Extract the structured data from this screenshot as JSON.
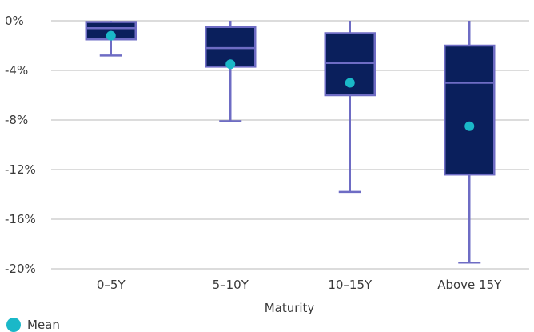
{
  "chart_data": {
    "type": "boxplot",
    "categories": [
      "0–5Y",
      "5–10Y",
      "10–15Y",
      "Above 15Y"
    ],
    "boxes": [
      {
        "category": "0–5Y",
        "min": -2.8,
        "q1": -1.5,
        "median": -0.6,
        "q3": -0.1,
        "max": 0.0,
        "mean": -1.2
      },
      {
        "category": "5–10Y",
        "min": -8.1,
        "q1": -3.7,
        "median": -2.2,
        "q3": -0.5,
        "max": 0.0,
        "mean": -3.5
      },
      {
        "category": "10–15Y",
        "min": -13.8,
        "q1": -6.0,
        "median": -3.4,
        "q3": -1.0,
        "max": 0.0,
        "mean": -5.0
      },
      {
        "category": "Above 15Y",
        "min": -19.5,
        "q1": -12.4,
        "median": -5.0,
        "q3": -2.0,
        "max": 0.0,
        "mean": -8.5
      }
    ],
    "xlabel": "Maturity",
    "ylabel": "",
    "ylim": [
      -20,
      0
    ],
    "yticks": [
      "0%",
      "-4%",
      "-8%",
      "-12%",
      "-16%",
      "-20%"
    ],
    "ytick_values": [
      0,
      -4,
      -8,
      -12,
      -16,
      -20
    ],
    "grid": true,
    "legend": [
      {
        "name": "Mean",
        "color": "#1ab8c8"
      }
    ],
    "legend_position": "bottom-left",
    "colors": {
      "box_fill": "#0a1f5c",
      "box_stroke": "#6e6cc4",
      "whisker": "#6e6cc4",
      "median": "#6e6cc4",
      "mean": "#1ab8c8",
      "grid": "#b8b8b8"
    }
  }
}
